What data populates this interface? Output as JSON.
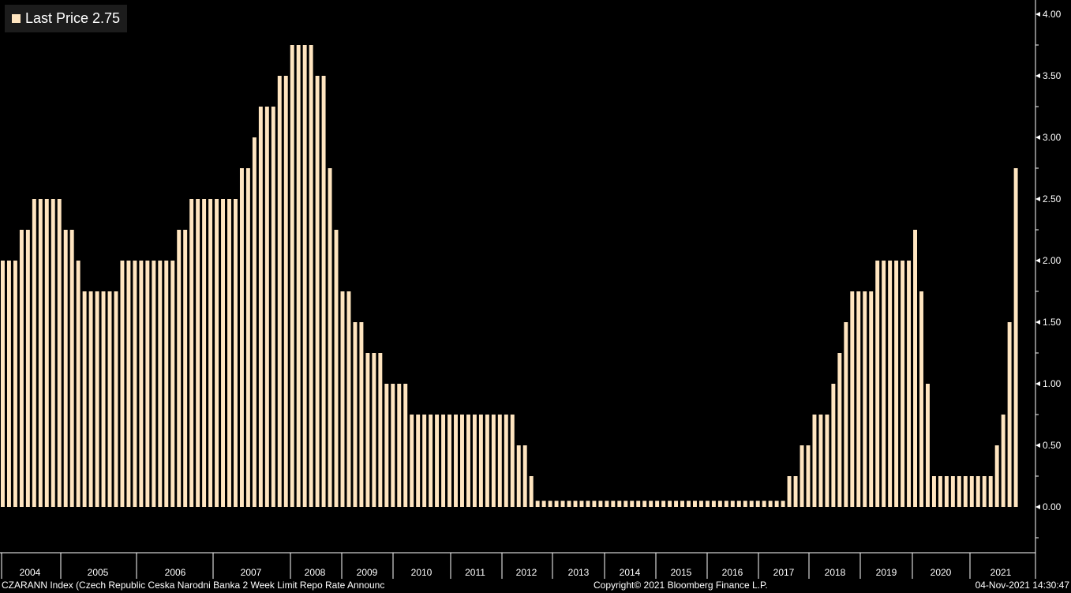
{
  "legend": {
    "label": "Last Price 2.75"
  },
  "footer": {
    "left": "CZARANN Index (Czech Republic Ceska Narodni Banka 2 Week Limit Repo Rate Announc",
    "center": "Copyright© 2021 Bloomberg Finance L.P.",
    "right": "04-Nov-2021 14:30:47"
  },
  "colors": {
    "background": "#000000",
    "bar": "#ffe5c0",
    "axis": "#ffffff"
  },
  "chart_data": {
    "type": "bar",
    "ylim": [
      -0.35,
      4.0
    ],
    "yticks": [
      "4.00",
      "3.50",
      "3.00",
      "2.50",
      "2.00",
      "1.50",
      "1.00",
      "0.50",
      "0.00"
    ],
    "ytick_values": [
      4.0,
      3.5,
      3.0,
      2.5,
      2.0,
      1.5,
      1.0,
      0.5,
      0.0
    ],
    "year_labels": [
      "2004",
      "2005",
      "2006",
      "2007",
      "2008",
      "2009",
      "2010",
      "2011",
      "2012",
      "2013",
      "2014",
      "2015",
      "2016",
      "2017",
      "2018",
      "2019",
      "2020",
      "2021"
    ],
    "grid": false,
    "legend_position": "top-left",
    "series": [
      {
        "name": "Last Price",
        "values": [
          2.0,
          2.0,
          2.0,
          2.25,
          2.25,
          2.5,
          2.5,
          2.5,
          2.5,
          2.5,
          2.25,
          2.25,
          2.0,
          1.75,
          1.75,
          1.75,
          1.75,
          1.75,
          1.75,
          2.0,
          2.0,
          2.0,
          2.0,
          2.0,
          2.0,
          2.0,
          2.0,
          2.0,
          2.25,
          2.25,
          2.5,
          2.5,
          2.5,
          2.5,
          2.5,
          2.5,
          2.5,
          2.5,
          2.75,
          2.75,
          3.0,
          3.25,
          3.25,
          3.25,
          3.5,
          3.5,
          3.75,
          3.75,
          3.75,
          3.75,
          3.5,
          3.5,
          2.75,
          2.25,
          1.75,
          1.75,
          1.5,
          1.5,
          1.25,
          1.25,
          1.25,
          1.0,
          1.0,
          1.0,
          1.0,
          0.75,
          0.75,
          0.75,
          0.75,
          0.75,
          0.75,
          0.75,
          0.75,
          0.75,
          0.75,
          0.75,
          0.75,
          0.75,
          0.75,
          0.75,
          0.75,
          0.75,
          0.5,
          0.5,
          0.25,
          0.05,
          0.05,
          0.05,
          0.05,
          0.05,
          0.05,
          0.05,
          0.05,
          0.05,
          0.05,
          0.05,
          0.05,
          0.05,
          0.05,
          0.05,
          0.05,
          0.05,
          0.05,
          0.05,
          0.05,
          0.05,
          0.05,
          0.05,
          0.05,
          0.05,
          0.05,
          0.05,
          0.05,
          0.05,
          0.05,
          0.05,
          0.05,
          0.05,
          0.05,
          0.05,
          0.05,
          0.05,
          0.05,
          0.05,
          0.05,
          0.25,
          0.25,
          0.5,
          0.5,
          0.75,
          0.75,
          0.75,
          1.0,
          1.25,
          1.5,
          1.75,
          1.75,
          1.75,
          1.75,
          2.0,
          2.0,
          2.0,
          2.0,
          2.0,
          2.0,
          2.25,
          1.75,
          1.0,
          0.25,
          0.25,
          0.25,
          0.25,
          0.25,
          0.25,
          0.25,
          0.25,
          0.25,
          0.25,
          0.5,
          0.75,
          1.5,
          2.75
        ]
      }
    ]
  }
}
